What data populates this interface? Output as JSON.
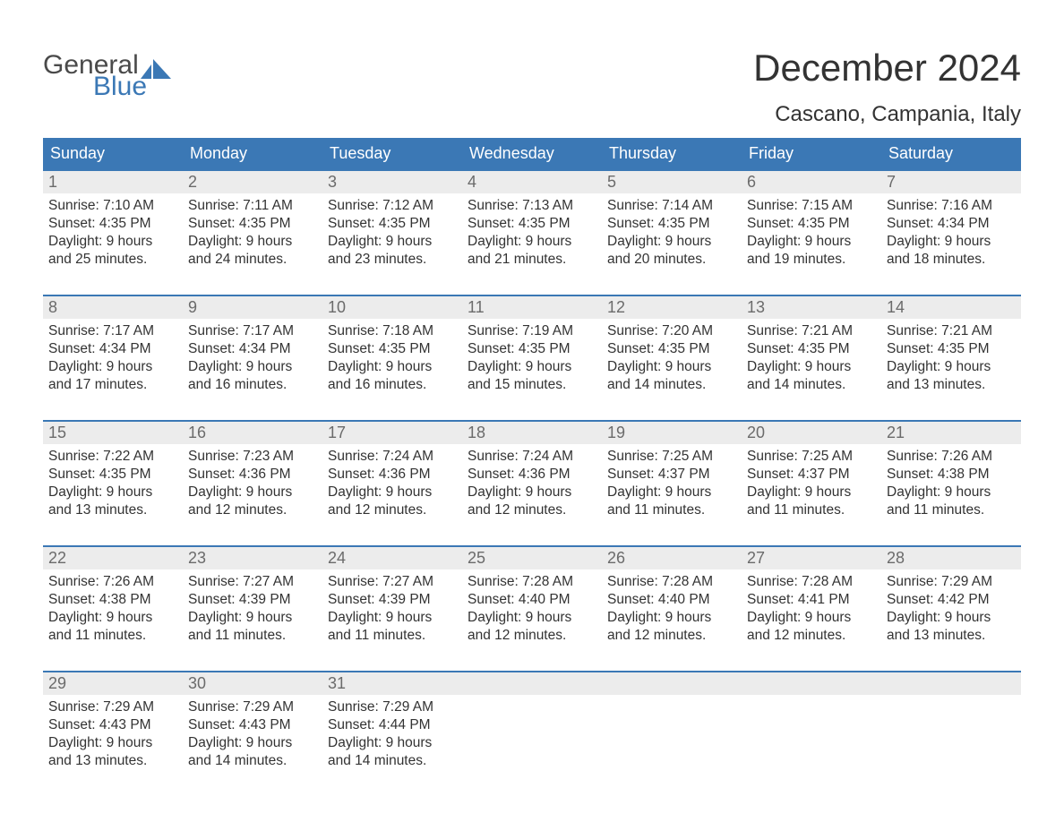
{
  "logo": {
    "line1": "General",
    "line2": "Blue"
  },
  "title": "December 2024",
  "location": "Cascano, Campania, Italy",
  "dow": [
    "Sunday",
    "Monday",
    "Tuesday",
    "Wednesday",
    "Thursday",
    "Friday",
    "Saturday"
  ],
  "colors": {
    "header_bg": "#3b78b5",
    "header_text": "#ffffff",
    "daynum_bg": "#ececec",
    "daynum_text": "#6b6b6b",
    "body_text": "#333333",
    "logo_gray": "#4a4a4a",
    "logo_blue": "#3b78b5",
    "week_border": "#3b78b5",
    "background": "#ffffff"
  },
  "type": "calendar-table",
  "layout": {
    "columns": 7,
    "rows": 5
  },
  "weeks": [
    [
      {
        "n": "1",
        "sr": "Sunrise: 7:10 AM",
        "ss": "Sunset: 4:35 PM",
        "d1": "Daylight: 9 hours",
        "d2": "and 25 minutes."
      },
      {
        "n": "2",
        "sr": "Sunrise: 7:11 AM",
        "ss": "Sunset: 4:35 PM",
        "d1": "Daylight: 9 hours",
        "d2": "and 24 minutes."
      },
      {
        "n": "3",
        "sr": "Sunrise: 7:12 AM",
        "ss": "Sunset: 4:35 PM",
        "d1": "Daylight: 9 hours",
        "d2": "and 23 minutes."
      },
      {
        "n": "4",
        "sr": "Sunrise: 7:13 AM",
        "ss": "Sunset: 4:35 PM",
        "d1": "Daylight: 9 hours",
        "d2": "and 21 minutes."
      },
      {
        "n": "5",
        "sr": "Sunrise: 7:14 AM",
        "ss": "Sunset: 4:35 PM",
        "d1": "Daylight: 9 hours",
        "d2": "and 20 minutes."
      },
      {
        "n": "6",
        "sr": "Sunrise: 7:15 AM",
        "ss": "Sunset: 4:35 PM",
        "d1": "Daylight: 9 hours",
        "d2": "and 19 minutes."
      },
      {
        "n": "7",
        "sr": "Sunrise: 7:16 AM",
        "ss": "Sunset: 4:34 PM",
        "d1": "Daylight: 9 hours",
        "d2": "and 18 minutes."
      }
    ],
    [
      {
        "n": "8",
        "sr": "Sunrise: 7:17 AM",
        "ss": "Sunset: 4:34 PM",
        "d1": "Daylight: 9 hours",
        "d2": "and 17 minutes."
      },
      {
        "n": "9",
        "sr": "Sunrise: 7:17 AM",
        "ss": "Sunset: 4:34 PM",
        "d1": "Daylight: 9 hours",
        "d2": "and 16 minutes."
      },
      {
        "n": "10",
        "sr": "Sunrise: 7:18 AM",
        "ss": "Sunset: 4:35 PM",
        "d1": "Daylight: 9 hours",
        "d2": "and 16 minutes."
      },
      {
        "n": "11",
        "sr": "Sunrise: 7:19 AM",
        "ss": "Sunset: 4:35 PM",
        "d1": "Daylight: 9 hours",
        "d2": "and 15 minutes."
      },
      {
        "n": "12",
        "sr": "Sunrise: 7:20 AM",
        "ss": "Sunset: 4:35 PM",
        "d1": "Daylight: 9 hours",
        "d2": "and 14 minutes."
      },
      {
        "n": "13",
        "sr": "Sunrise: 7:21 AM",
        "ss": "Sunset: 4:35 PM",
        "d1": "Daylight: 9 hours",
        "d2": "and 14 minutes."
      },
      {
        "n": "14",
        "sr": "Sunrise: 7:21 AM",
        "ss": "Sunset: 4:35 PM",
        "d1": "Daylight: 9 hours",
        "d2": "and 13 minutes."
      }
    ],
    [
      {
        "n": "15",
        "sr": "Sunrise: 7:22 AM",
        "ss": "Sunset: 4:35 PM",
        "d1": "Daylight: 9 hours",
        "d2": "and 13 minutes."
      },
      {
        "n": "16",
        "sr": "Sunrise: 7:23 AM",
        "ss": "Sunset: 4:36 PM",
        "d1": "Daylight: 9 hours",
        "d2": "and 12 minutes."
      },
      {
        "n": "17",
        "sr": "Sunrise: 7:24 AM",
        "ss": "Sunset: 4:36 PM",
        "d1": "Daylight: 9 hours",
        "d2": "and 12 minutes."
      },
      {
        "n": "18",
        "sr": "Sunrise: 7:24 AM",
        "ss": "Sunset: 4:36 PM",
        "d1": "Daylight: 9 hours",
        "d2": "and 12 minutes."
      },
      {
        "n": "19",
        "sr": "Sunrise: 7:25 AM",
        "ss": "Sunset: 4:37 PM",
        "d1": "Daylight: 9 hours",
        "d2": "and 11 minutes."
      },
      {
        "n": "20",
        "sr": "Sunrise: 7:25 AM",
        "ss": "Sunset: 4:37 PM",
        "d1": "Daylight: 9 hours",
        "d2": "and 11 minutes."
      },
      {
        "n": "21",
        "sr": "Sunrise: 7:26 AM",
        "ss": "Sunset: 4:38 PM",
        "d1": "Daylight: 9 hours",
        "d2": "and 11 minutes."
      }
    ],
    [
      {
        "n": "22",
        "sr": "Sunrise: 7:26 AM",
        "ss": "Sunset: 4:38 PM",
        "d1": "Daylight: 9 hours",
        "d2": "and 11 minutes."
      },
      {
        "n": "23",
        "sr": "Sunrise: 7:27 AM",
        "ss": "Sunset: 4:39 PM",
        "d1": "Daylight: 9 hours",
        "d2": "and 11 minutes."
      },
      {
        "n": "24",
        "sr": "Sunrise: 7:27 AM",
        "ss": "Sunset: 4:39 PM",
        "d1": "Daylight: 9 hours",
        "d2": "and 11 minutes."
      },
      {
        "n": "25",
        "sr": "Sunrise: 7:28 AM",
        "ss": "Sunset: 4:40 PM",
        "d1": "Daylight: 9 hours",
        "d2": "and 12 minutes."
      },
      {
        "n": "26",
        "sr": "Sunrise: 7:28 AM",
        "ss": "Sunset: 4:40 PM",
        "d1": "Daylight: 9 hours",
        "d2": "and 12 minutes."
      },
      {
        "n": "27",
        "sr": "Sunrise: 7:28 AM",
        "ss": "Sunset: 4:41 PM",
        "d1": "Daylight: 9 hours",
        "d2": "and 12 minutes."
      },
      {
        "n": "28",
        "sr": "Sunrise: 7:29 AM",
        "ss": "Sunset: 4:42 PM",
        "d1": "Daylight: 9 hours",
        "d2": "and 13 minutes."
      }
    ],
    [
      {
        "n": "29",
        "sr": "Sunrise: 7:29 AM",
        "ss": "Sunset: 4:43 PM",
        "d1": "Daylight: 9 hours",
        "d2": "and 13 minutes."
      },
      {
        "n": "30",
        "sr": "Sunrise: 7:29 AM",
        "ss": "Sunset: 4:43 PM",
        "d1": "Daylight: 9 hours",
        "d2": "and 14 minutes."
      },
      {
        "n": "31",
        "sr": "Sunrise: 7:29 AM",
        "ss": "Sunset: 4:44 PM",
        "d1": "Daylight: 9 hours",
        "d2": "and 14 minutes."
      },
      null,
      null,
      null,
      null
    ]
  ]
}
